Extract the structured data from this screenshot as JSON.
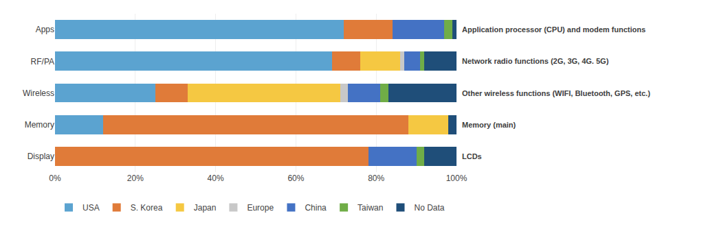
{
  "chart_data": {
    "type": "bar",
    "orientation": "horizontal",
    "stacked": true,
    "categories": [
      "Display",
      "Memory",
      "Wireless",
      "RF/PA",
      "Apps"
    ],
    "annotations": [
      "LCDs",
      "Memory (main)",
      "Other wireless functions (WIFI, Bluetooth, GPS, etc.)",
      "Network radio functions (2G, 3G, 4G. 5G)",
      "Application processor (CPU) and modem functions"
    ],
    "series": [
      {
        "name": "USA",
        "color": "#5BA3D0",
        "values": [
          0,
          12,
          25,
          69,
          72
        ]
      },
      {
        "name": "S. Korea",
        "color": "#E07B39",
        "values": [
          78,
          76,
          8,
          7,
          12
        ]
      },
      {
        "name": "Japan",
        "color": "#F5C842",
        "values": [
          0,
          10,
          38,
          10,
          0
        ]
      },
      {
        "name": "Europe",
        "color": "#C8C8C8",
        "values": [
          0,
          0,
          2,
          1,
          0
        ]
      },
      {
        "name": "China",
        "color": "#4472C4",
        "values": [
          12,
          0,
          8,
          4,
          13
        ]
      },
      {
        "name": "Taiwan",
        "color": "#70AD47",
        "values": [
          2,
          0,
          2,
          1,
          2
        ]
      },
      {
        "name": "No Data",
        "color": "#1F4E79",
        "values": [
          8,
          2,
          17,
          8,
          1
        ]
      }
    ],
    "xlim": [
      0,
      100
    ],
    "xticks": [
      {
        "value": 0,
        "label": "0%"
      },
      {
        "value": 20,
        "label": "20%"
      },
      {
        "value": 40,
        "label": "40%"
      },
      {
        "value": 60,
        "label": "60%"
      },
      {
        "value": 80,
        "label": "80%"
      },
      {
        "value": 100,
        "label": "100%"
      }
    ],
    "grid": true,
    "legend": "bottom"
  }
}
